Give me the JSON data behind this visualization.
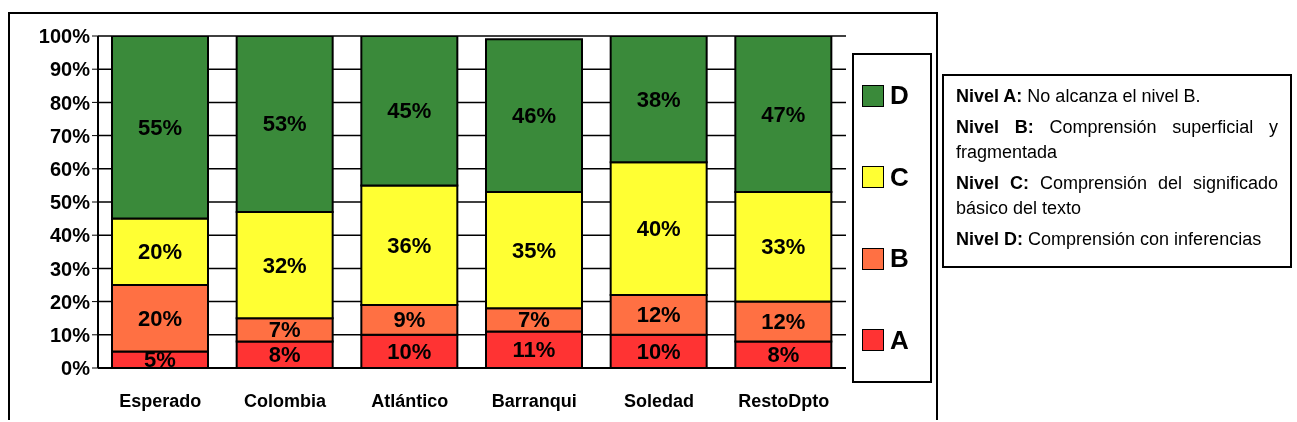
{
  "chart_data": {
    "type": "bar",
    "stacked": true,
    "categories": [
      "Esperado",
      "Colombia",
      "Atlántico",
      "Barranqui",
      "Soledad",
      "RestoDpto"
    ],
    "series": [
      {
        "name": "A",
        "color": "#ff3333",
        "values": [
          5,
          8,
          10,
          11,
          10,
          8
        ],
        "value_labels": [
          "5%",
          "8%",
          "10%",
          "11%",
          "10%",
          "8%"
        ]
      },
      {
        "name": "B",
        "color": "#ff7043",
        "values": [
          20,
          7,
          9,
          7,
          12,
          12
        ],
        "value_labels": [
          "20%",
          "7%",
          "9%",
          "7%",
          "12%",
          "12%"
        ]
      },
      {
        "name": "C",
        "color": "#ffff33",
        "values": [
          20,
          32,
          36,
          35,
          40,
          33
        ],
        "value_labels": [
          "20%",
          "32%",
          "36%",
          "35%",
          "40%",
          "33%"
        ]
      },
      {
        "name": "D",
        "color": "#3a8a3a",
        "values": [
          55,
          53,
          45,
          46,
          38,
          47
        ],
        "value_labels": [
          "55%",
          "53%",
          "45%",
          "46%",
          "38%",
          "47%"
        ]
      }
    ],
    "ylim": [
      0,
      100
    ],
    "yticks": [
      {
        "value": 0,
        "label": "0%"
      },
      {
        "value": 10,
        "label": "10%"
      },
      {
        "value": 20,
        "label": "20%"
      },
      {
        "value": 30,
        "label": "30%"
      },
      {
        "value": 40,
        "label": "40%"
      },
      {
        "value": 50,
        "label": "50%"
      },
      {
        "value": 60,
        "label": "60%"
      },
      {
        "value": 70,
        "label": "70%"
      },
      {
        "value": 80,
        "label": "80%"
      },
      {
        "value": 90,
        "label": "90%"
      },
      {
        "value": 100,
        "label": "100%"
      }
    ],
    "grid": "y",
    "legend": "right",
    "annotations": [
      "Nivel A: No alcanza el nivel B.",
      "Nivel B: Comprensión superficial y fragmentada",
      "Nivel C: Comprensión del significado básico del texto",
      "Nivel D: Comprensión con inferencias"
    ]
  }
}
